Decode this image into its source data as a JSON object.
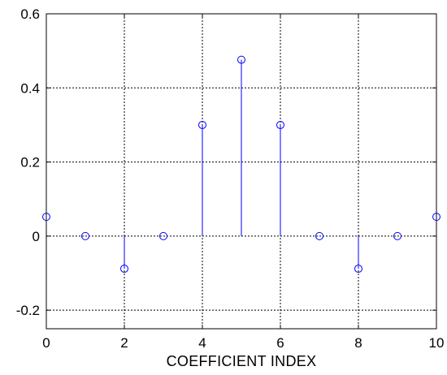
{
  "chart_data": {
    "type": "stem",
    "title": "",
    "xlabel": "COEFFICIENT INDEX",
    "ylabel": "",
    "xlim": [
      0,
      10
    ],
    "ylim": [
      -0.25,
      0.6
    ],
    "x_ticks": [
      "0",
      "2",
      "4",
      "6",
      "8",
      "10"
    ],
    "y_ticks": [
      "-0.2",
      "0",
      "0.2",
      "0.4",
      "0.6"
    ],
    "grid": true,
    "x": [
      0,
      1,
      2,
      3,
      4,
      5,
      6,
      7,
      8,
      9,
      10
    ],
    "values": [
      0.052,
      0,
      -0.088,
      0,
      0.3,
      0.476,
      0.3,
      0,
      -0.088,
      0,
      0.052
    ],
    "marker": "circle",
    "colors": {
      "stem": "#0000ff",
      "grid": "#000000",
      "axes": "#000000"
    }
  }
}
